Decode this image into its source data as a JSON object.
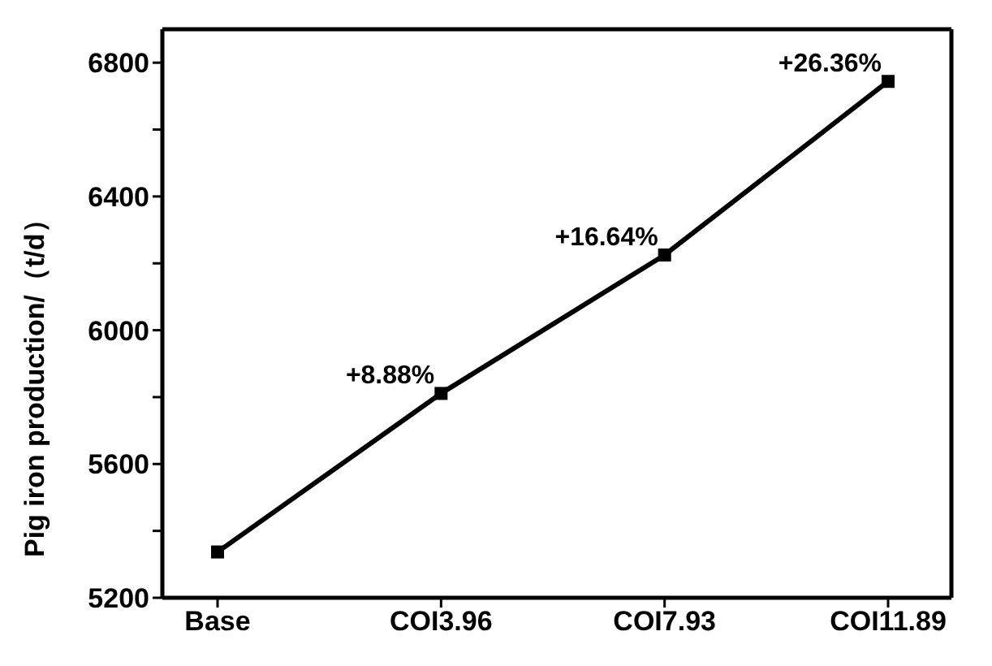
{
  "chart_data": {
    "type": "line",
    "ylabel": "Pig iron production/（t/d）",
    "categories": [
      "Base",
      "COI3.96",
      "COI7.93",
      "COI11.89"
    ],
    "series": [
      {
        "color": "#000000",
        "values": [
          5337,
          5811,
          6225,
          6744
        ]
      }
    ],
    "annotations": [
      {
        "text": "+8.88%",
        "x": "COI3.96",
        "y": 5811
      },
      {
        "text": "+16.64%",
        "x": "COI7.93",
        "y": 6225
      },
      {
        "text": "+26.36%",
        "x": "COI11.89",
        "y": 6744
      }
    ],
    "ylim": [
      5200,
      6900
    ],
    "yticks": [
      5200,
      {
        "value": 5400,
        "label": null
      },
      5600,
      {
        "value": 5800,
        "label": null
      },
      6000,
      {
        "value": 6200,
        "label": null
      },
      6400,
      {
        "value": 6600,
        "label": null
      },
      6800
    ],
    "marker": "square",
    "line_style": "solid",
    "grid": false,
    "legend": false
  }
}
